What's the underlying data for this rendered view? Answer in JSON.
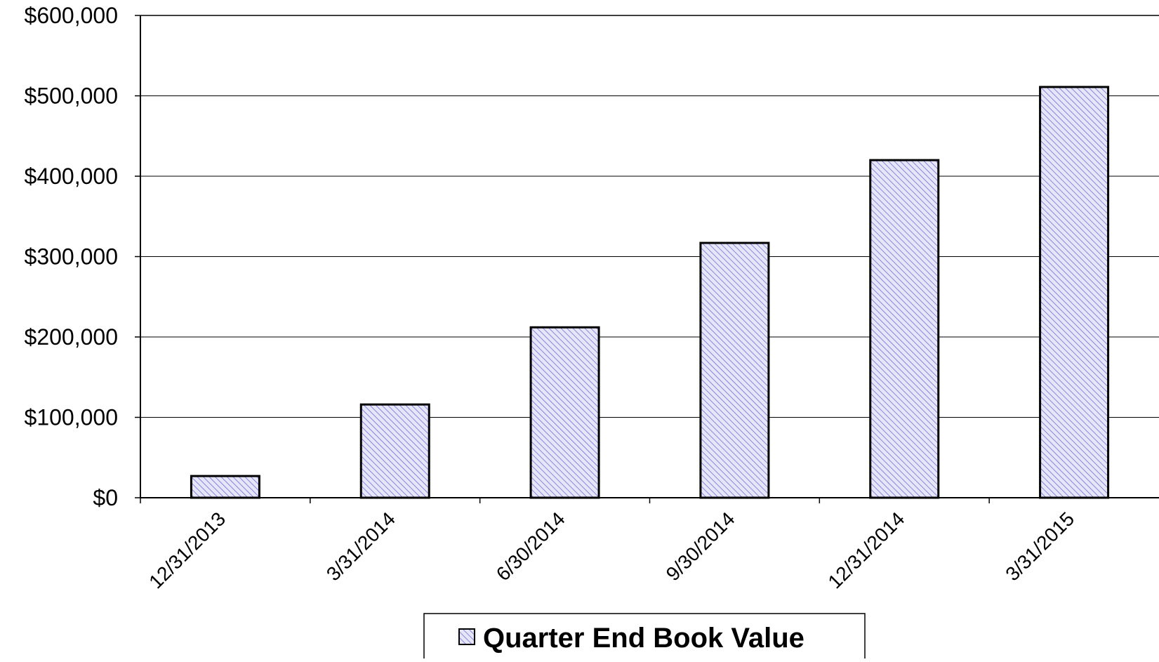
{
  "chart_data": {
    "type": "bar",
    "categories": [
      "12/31/2013",
      "3/31/2014",
      "6/30/2014",
      "9/30/2014",
      "12/31/2014",
      "3/31/2015"
    ],
    "series": [
      {
        "name": "Quarter End Book Value",
        "values": [
          27000,
          116000,
          212000,
          317000,
          420000,
          511000
        ]
      }
    ],
    "ylim": [
      0,
      600000
    ],
    "yticks": [
      "$0",
      "$100,000",
      "$200,000",
      "$300,000",
      "$400,000",
      "$500,000",
      "$600,000"
    ],
    "grid": true,
    "legend": "bottom-center",
    "colors": {
      "bar_fill": "#e6e6f8",
      "bar_hatch": "#6d70d6",
      "bar_stroke": "#000000",
      "grid": "#000000"
    }
  }
}
